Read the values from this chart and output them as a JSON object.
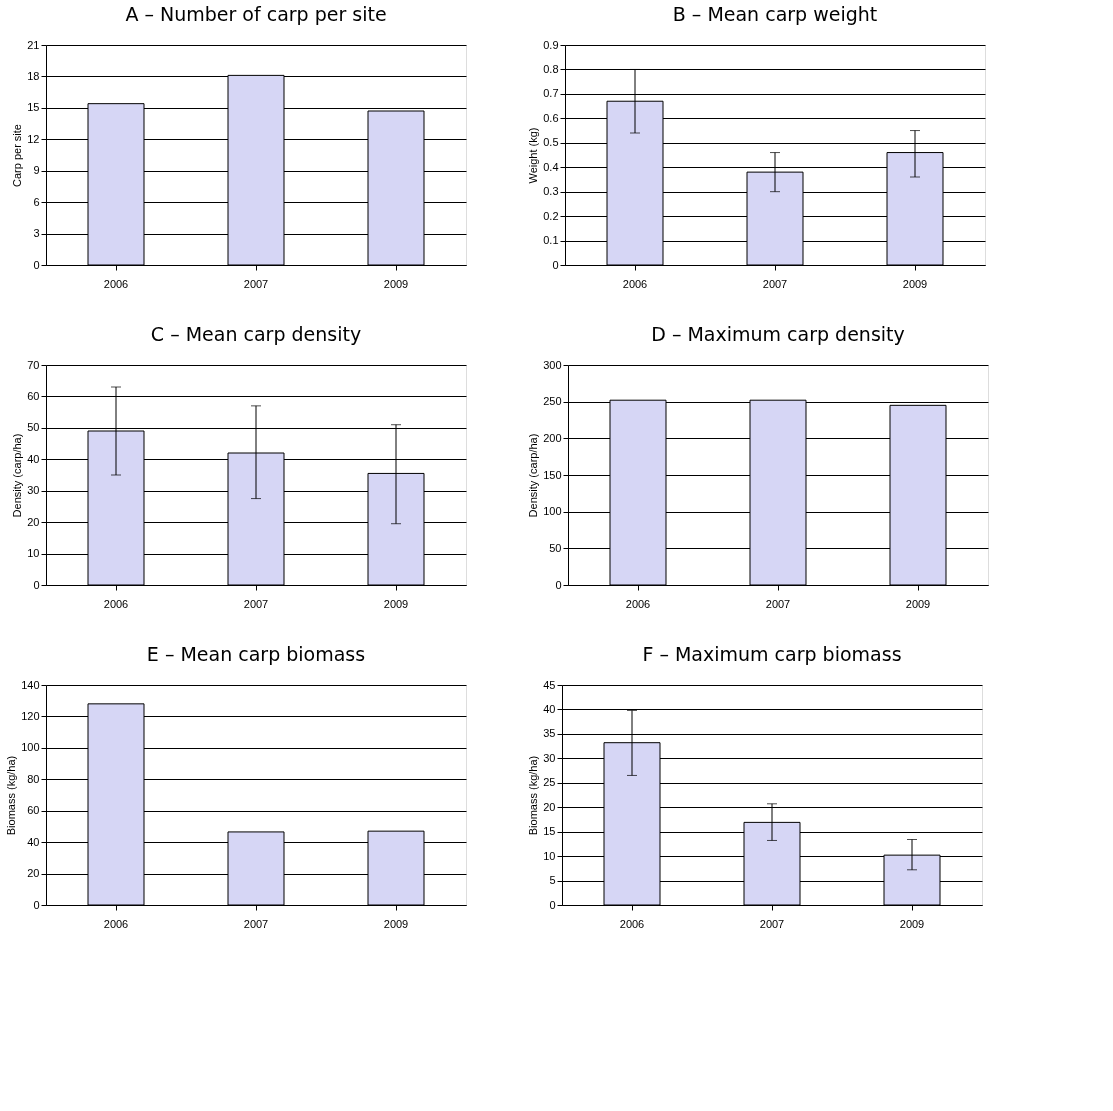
{
  "chart_data": [
    {
      "type": "bar",
      "title": "A – Number of carp per site",
      "ylabel": "Carp per site",
      "categories": [
        "2006",
        "2007",
        "2009"
      ],
      "values": [
        15.4,
        18.1,
        14.7
      ],
      "color": "#d6d6f5",
      "ylim": [
        0,
        21
      ],
      "yticks": [
        0,
        3,
        6,
        9,
        12,
        15,
        18,
        21
      ],
      "grid": "y"
    },
    {
      "type": "bar",
      "title": "B – Mean carp weight",
      "ylabel": "Weight (kg)",
      "categories": [
        "2006",
        "2007",
        "2009"
      ],
      "values": [
        0.67,
        0.38,
        0.46
      ],
      "errors": [
        [
          0.54,
          0.8
        ],
        [
          0.3,
          0.46
        ],
        [
          0.36,
          0.55
        ]
      ],
      "color": "#d6d6f5",
      "ylim": [
        0,
        0.9
      ],
      "yticks": [
        0,
        0.1,
        0.2,
        0.3,
        0.4,
        0.5,
        0.6,
        0.7,
        0.8,
        0.9
      ],
      "grid": "y"
    },
    {
      "type": "bar",
      "title": "C – Mean carp density",
      "ylabel": "Density (carp/ha)",
      "categories": [
        "2006",
        "2007",
        "2009"
      ],
      "values": [
        49,
        42,
        35.5
      ],
      "errors": [
        [
          35,
          63
        ],
        [
          27.5,
          57
        ],
        [
          19.5,
          51
        ]
      ],
      "color": "#d6d6f5",
      "ylim": [
        0,
        70
      ],
      "yticks": [
        0,
        10,
        20,
        30,
        40,
        50,
        60,
        70
      ],
      "grid": "y"
    },
    {
      "type": "bar",
      "title": "D – Maximum carp density",
      "ylabel": "Density (carp/ha)",
      "categories": [
        "2006",
        "2007",
        "2009"
      ],
      "values": [
        252,
        252,
        245
      ],
      "color": "#d6d6f5",
      "ylim": [
        0,
        300
      ],
      "yticks": [
        0,
        50,
        100,
        150,
        200,
        250,
        300
      ],
      "grid": "y"
    },
    {
      "type": "bar",
      "title": "E – Mean carp biomass",
      "ylabel": "Biomass (kg/ha)",
      "categories": [
        "2006",
        "2007",
        "2009"
      ],
      "values": [
        128,
        46.5,
        47
      ],
      "color": "#d6d6f5",
      "ylim": [
        0,
        140
      ],
      "yticks": [
        0,
        20,
        40,
        60,
        80,
        100,
        120,
        140
      ],
      "grid": "y"
    },
    {
      "type": "bar",
      "title": "F – Maximum carp biomass",
      "ylabel": "Biomass (kg/ha)",
      "categories": [
        "2006",
        "2007",
        "2009"
      ],
      "values": [
        33.2,
        16.9,
        10.2
      ],
      "errors": [
        [
          26.5,
          39.8
        ],
        [
          13.2,
          20.7
        ],
        [
          7.2,
          13.4
        ]
      ],
      "color": "#d6d6f5",
      "ylim": [
        0,
        45
      ],
      "yticks": [
        0,
        5,
        10,
        15,
        20,
        25,
        30,
        35,
        40,
        45
      ],
      "grid": "y"
    }
  ]
}
